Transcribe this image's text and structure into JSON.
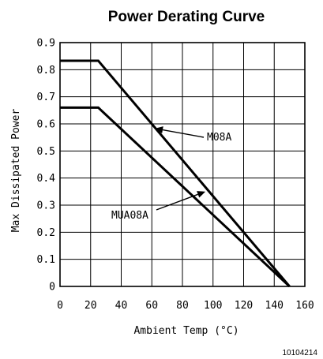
{
  "chart_data": {
    "type": "line",
    "title": "Power Derating Curve",
    "xlabel": "Ambient Temp (°C)",
    "ylabel": "Max Dissipated Power",
    "xlim": [
      0,
      160
    ],
    "ylim": [
      0,
      0.9
    ],
    "xticks": [
      0,
      20,
      40,
      60,
      80,
      100,
      120,
      140,
      160
    ],
    "yticks": [
      0,
      0.1,
      0.2,
      0.3,
      0.4,
      0.5,
      0.6,
      0.7,
      0.8,
      0.9
    ],
    "x_tick_labels": [
      "0",
      "20",
      "40",
      "60",
      "80",
      "100",
      "120",
      "140",
      "160"
    ],
    "y_tick_labels": [
      "0",
      "0.1",
      "0.2",
      "0.3",
      "0.4",
      "0.5",
      "0.6",
      "0.7",
      "0.8",
      "0.9"
    ],
    "grid": true,
    "series": [
      {
        "name": "M08A",
        "points": [
          [
            0,
            0.833
          ],
          [
            25,
            0.833
          ],
          [
            150,
            0
          ]
        ]
      },
      {
        "name": "MUA08A",
        "points": [
          [
            0,
            0.66
          ],
          [
            25,
            0.66
          ],
          [
            150,
            0
          ]
        ]
      }
    ],
    "annotations": [
      {
        "text": "M08A",
        "series": "M08A",
        "arrow_to": [
          62,
          0.583
        ]
      },
      {
        "text": "MUA08A",
        "series": "MUA08A",
        "arrow_to": [
          95,
          0.35
        ]
      }
    ],
    "figure_id": "10104214"
  }
}
